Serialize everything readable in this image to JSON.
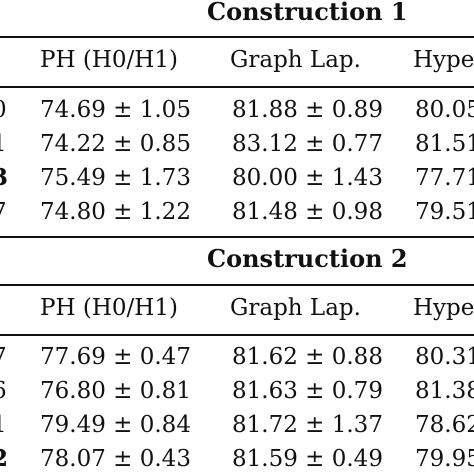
{
  "sections": [
    {
      "title": "Construction 1",
      "headers": [
        "PH (H0/H1)",
        "Graph Lap.",
        "Hype"
      ],
      "rows": [
        {
          "left": "0",
          "c1": "74.69 ± 1.05",
          "c2": "81.88 ± 0.89",
          "c3": "80.05"
        },
        {
          "left": "1",
          "c1": "74.22 ± 0.85",
          "c2": "83.12 ± 0.77",
          "c3": "81.51"
        },
        {
          "left": "3",
          "c1": "75.49 ± 1.73",
          "c2": "80.00 ± 1.43",
          "c3": "77.71"
        },
        {
          "left": "7",
          "c1": "74.80 ± 1.22",
          "c2": "81.48 ± 0.98",
          "c3": "79.51"
        }
      ]
    },
    {
      "title": "Construction 2",
      "headers": [
        "PH (H0/H1)",
        "Graph Lap.",
        "Hype"
      ],
      "rows": [
        {
          "left": "7",
          "c1": "77.69 ± 0.47",
          "c2": "81.62 ± 0.88",
          "c3": "80.31"
        },
        {
          "left": "6",
          "c1": "76.80 ± 0.81",
          "c2": "81.63 ± 0.79",
          "c3": "81.38"
        },
        {
          "left": "1",
          "c1": "79.49 ± 0.84",
          "c2": "81.72 ± 1.37",
          "c3": "78.62"
        },
        {
          "left": "2",
          "c1": "78.07 ± 0.43",
          "c2": "81.59 ± 0.49",
          "c3": "79.95"
        }
      ]
    }
  ]
}
